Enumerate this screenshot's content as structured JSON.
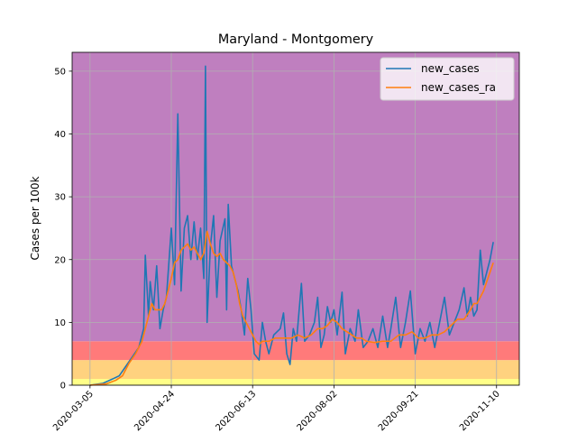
{
  "chart_data": {
    "type": "line",
    "title": "Maryland - Montgomery",
    "xlabel": "",
    "ylabel": "Cases per 100k",
    "ylim": [
      0,
      53
    ],
    "yticks": [
      0,
      10,
      20,
      30,
      40,
      50
    ],
    "xtick_labels": [
      "2020-03-05",
      "2020-04-24",
      "2020-06-13",
      "2020-08-02",
      "2020-09-21",
      "2020-11-10"
    ],
    "xtick_days": [
      0,
      50,
      100,
      150,
      200,
      250
    ],
    "xlim_days": [
      -11,
      264
    ],
    "grid": true,
    "legend_position": "top-right",
    "bands": [
      {
        "name": "yellow-band",
        "from": 0,
        "to": 1,
        "color": "#ffff88"
      },
      {
        "name": "orange-band",
        "from": 1,
        "to": 4,
        "color": "#ffd27f"
      },
      {
        "name": "red-band",
        "from": 4,
        "to": 7,
        "color": "#ff7a7a"
      },
      {
        "name": "purple-band",
        "from": 7,
        "to": 53,
        "color": "#bf7fbf"
      }
    ],
    "series": [
      {
        "name": "new_cases",
        "color": "#1f77b4",
        "key_points": [
          [
            0,
            0
          ],
          [
            8,
            0.3
          ],
          [
            14,
            1
          ],
          [
            18,
            1.5
          ],
          [
            22,
            3
          ],
          [
            26,
            4.5
          ],
          [
            30,
            6
          ],
          [
            33,
            9
          ],
          [
            34,
            20.7
          ],
          [
            36,
            11
          ],
          [
            37,
            16.5
          ],
          [
            39,
            12
          ],
          [
            41,
            19
          ],
          [
            43,
            9
          ],
          [
            45,
            12
          ],
          [
            47,
            14
          ],
          [
            50,
            25
          ],
          [
            52,
            16
          ],
          [
            54,
            43.2
          ],
          [
            56,
            15
          ],
          [
            58,
            25
          ],
          [
            60,
            27
          ],
          [
            62,
            20
          ],
          [
            64,
            26
          ],
          [
            66,
            20
          ],
          [
            68,
            25
          ],
          [
            70,
            17
          ],
          [
            71,
            50.8
          ],
          [
            72,
            10
          ],
          [
            74,
            22
          ],
          [
            76,
            27
          ],
          [
            78,
            14
          ],
          [
            80,
            23
          ],
          [
            83,
            26.5
          ],
          [
            84,
            12
          ],
          [
            85,
            28.8
          ],
          [
            87,
            19
          ],
          [
            89,
            17
          ],
          [
            91,
            15
          ],
          [
            93,
            12
          ],
          [
            95,
            8
          ],
          [
            97,
            17
          ],
          [
            99,
            12
          ],
          [
            101,
            5
          ],
          [
            104,
            4
          ],
          [
            106,
            10
          ],
          [
            108,
            7
          ],
          [
            110,
            5
          ],
          [
            113,
            8
          ],
          [
            117,
            9
          ],
          [
            119,
            11.5
          ],
          [
            121,
            5
          ],
          [
            123,
            3.3
          ],
          [
            125,
            9
          ],
          [
            127,
            7
          ],
          [
            130,
            16.2
          ],
          [
            132,
            7
          ],
          [
            135,
            8
          ],
          [
            138,
            10
          ],
          [
            140,
            14
          ],
          [
            142,
            6
          ],
          [
            144,
            8
          ],
          [
            146,
            12.5
          ],
          [
            148,
            10
          ],
          [
            150,
            12
          ],
          [
            152,
            8
          ],
          [
            155,
            14.8
          ],
          [
            157,
            5
          ],
          [
            160,
            9
          ],
          [
            163,
            7
          ],
          [
            165,
            12
          ],
          [
            168,
            6
          ],
          [
            171,
            7
          ],
          [
            174,
            9
          ],
          [
            177,
            6
          ],
          [
            180,
            11
          ],
          [
            183,
            6
          ],
          [
            185,
            9
          ],
          [
            188,
            14
          ],
          [
            191,
            6
          ],
          [
            194,
            10
          ],
          [
            197,
            15
          ],
          [
            200,
            5
          ],
          [
            203,
            9
          ],
          [
            206,
            7
          ],
          [
            209,
            10
          ],
          [
            212,
            6
          ],
          [
            215,
            10
          ],
          [
            218,
            14
          ],
          [
            221,
            8
          ],
          [
            224,
            10
          ],
          [
            227,
            12
          ],
          [
            230,
            15.5
          ],
          [
            232,
            11
          ],
          [
            234,
            14
          ],
          [
            236,
            11
          ],
          [
            238,
            12
          ],
          [
            240,
            21.5
          ],
          [
            242,
            16
          ],
          [
            244,
            18
          ],
          [
            246,
            20
          ],
          [
            248,
            22.8
          ]
        ]
      },
      {
        "name": "new_cases_ra",
        "color": "#ff7f0e",
        "key_points": [
          [
            0,
            0
          ],
          [
            10,
            0.2
          ],
          [
            16,
            0.8
          ],
          [
            20,
            1.5
          ],
          [
            24,
            3.5
          ],
          [
            28,
            5
          ],
          [
            32,
            7
          ],
          [
            36,
            11
          ],
          [
            38,
            13
          ],
          [
            40,
            12
          ],
          [
            42,
            12
          ],
          [
            44,
            12
          ],
          [
            46,
            13
          ],
          [
            48,
            15
          ],
          [
            50,
            17
          ],
          [
            52,
            19.5
          ],
          [
            54,
            20
          ],
          [
            56,
            21.5
          ],
          [
            58,
            22
          ],
          [
            60,
            22.5
          ],
          [
            62,
            21.5
          ],
          [
            64,
            22
          ],
          [
            66,
            21
          ],
          [
            68,
            20
          ],
          [
            70,
            21
          ],
          [
            72,
            24.5
          ],
          [
            74,
            22.5
          ],
          [
            76,
            21
          ],
          [
            78,
            20.5
          ],
          [
            80,
            21
          ],
          [
            82,
            20
          ],
          [
            84,
            19.5
          ],
          [
            86,
            19
          ],
          [
            88,
            18
          ],
          [
            90,
            16
          ],
          [
            92,
            13
          ],
          [
            94,
            11
          ],
          [
            96,
            10
          ],
          [
            98,
            9
          ],
          [
            100,
            8
          ],
          [
            102,
            7
          ],
          [
            104,
            6.5
          ],
          [
            106,
            7
          ],
          [
            108,
            7
          ],
          [
            110,
            7
          ],
          [
            114,
            7.5
          ],
          [
            118,
            7.5
          ],
          [
            120,
            7.5
          ],
          [
            124,
            7.5
          ],
          [
            128,
            8
          ],
          [
            132,
            7.5
          ],
          [
            136,
            8
          ],
          [
            140,
            9
          ],
          [
            143,
            9
          ],
          [
            146,
            9.5
          ],
          [
            149,
            10.5
          ],
          [
            152,
            10
          ],
          [
            155,
            9
          ],
          [
            158,
            8.5
          ],
          [
            161,
            8
          ],
          [
            164,
            7.5
          ],
          [
            167,
            7.5
          ],
          [
            170,
            7
          ],
          [
            175,
            6.8
          ],
          [
            180,
            7
          ],
          [
            185,
            7
          ],
          [
            190,
            8
          ],
          [
            194,
            8
          ],
          [
            198,
            8.5
          ],
          [
            202,
            7.5
          ],
          [
            206,
            7.5
          ],
          [
            210,
            8
          ],
          [
            214,
            8
          ],
          [
            218,
            8.5
          ],
          [
            222,
            9.5
          ],
          [
            226,
            10.5
          ],
          [
            230,
            10.5
          ],
          [
            234,
            12
          ],
          [
            236,
            13
          ],
          [
            238,
            13
          ],
          [
            240,
            14
          ],
          [
            242,
            15
          ],
          [
            244,
            16.5
          ],
          [
            246,
            18
          ],
          [
            248,
            19.5
          ]
        ]
      }
    ]
  }
}
